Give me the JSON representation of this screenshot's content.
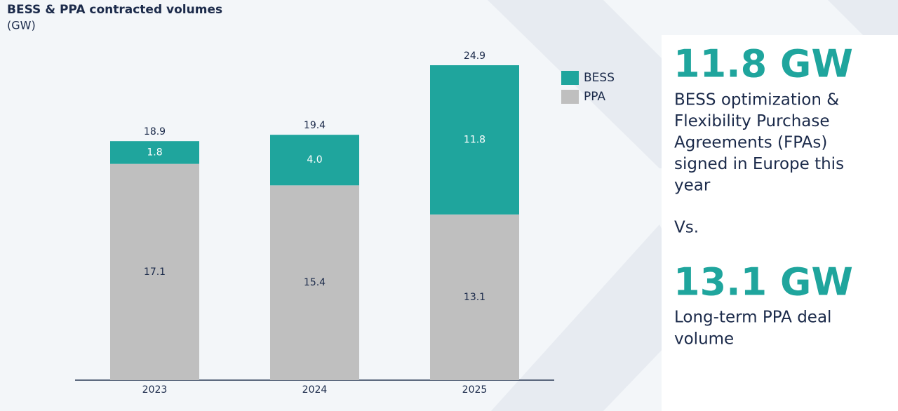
{
  "chart_data": {
    "type": "stacked-bar",
    "title": "BESS & PPA contracted volumes",
    "subtitle": "(GW)",
    "categories": [
      "2023",
      "2024",
      "2025"
    ],
    "series": [
      {
        "name": "PPA",
        "color": "#bfbfbf",
        "values": [
          17.1,
          15.4,
          13.1
        ]
      },
      {
        "name": "BESS",
        "color": "#1fa59d",
        "values": [
          1.8,
          4,
          11.8
        ],
        "value_labels": [
          "1.8",
          "4.0",
          "11.8"
        ]
      }
    ],
    "totals": [
      18.9,
      19.4,
      24.9
    ]
  },
  "panel": {
    "headline_1": "11.8 GW",
    "text_1": [
      "BESS optimization &",
      "Flexibility Purchase",
      "Agreements (FPAs)",
      "signed in Europe this",
      "year"
    ],
    "separator": "Vs.",
    "headline_2": "13.1 GW",
    "text_2": [
      "Long-term PPA deal",
      "volume"
    ]
  }
}
